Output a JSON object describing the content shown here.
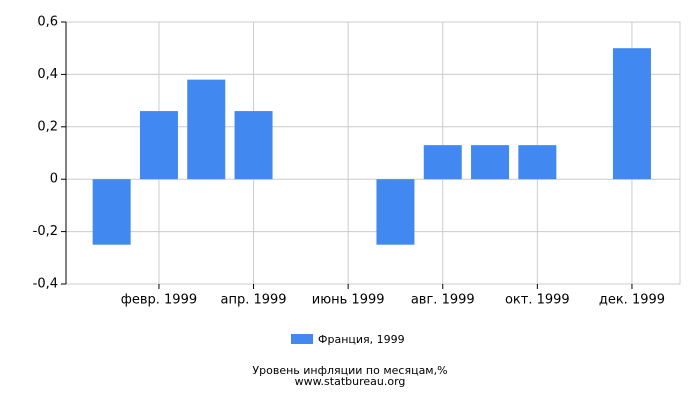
{
  "chart_data": {
    "type": "bar",
    "title": "Уровень инфляции по месяцам,%",
    "source": "www.statbureau.org",
    "categories": [
      null,
      "февр. 1999",
      null,
      "апр. 1999",
      null,
      "июнь 1999",
      null,
      "авг. 1999",
      null,
      "окт. 1999",
      null,
      "дек. 1999"
    ],
    "series": [
      {
        "name": "Франция, 1999",
        "color": "#4189f0",
        "values": [
          -0.25,
          0.26,
          0.38,
          0.26,
          0,
          0,
          -0.25,
          0.13,
          0.13,
          0.13,
          0,
          0.5
        ]
      }
    ],
    "ylim": [
      -0.4,
      0.6
    ],
    "yticks": [
      {
        "value": -0.4,
        "label": "-0,4"
      },
      {
        "value": -0.2,
        "label": "-0,2"
      },
      0,
      {
        "value": 0.2,
        "label": "0,2"
      },
      {
        "value": 0.4,
        "label": "0,4"
      },
      {
        "value": 0.6,
        "label": "0,6"
      }
    ],
    "grid": true
  }
}
